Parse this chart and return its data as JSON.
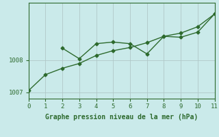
{
  "line1_x": [
    0,
    1,
    2,
    3,
    4,
    5,
    6,
    7,
    8,
    9,
    10,
    11
  ],
  "line1_y": [
    1007.05,
    1007.55,
    1007.75,
    1007.9,
    1008.15,
    1008.3,
    1008.4,
    1008.55,
    1008.75,
    1008.85,
    1009.05,
    1009.45
  ],
  "line2_x": [
    2,
    3,
    4,
    5,
    6,
    7,
    8,
    9,
    10,
    11
  ],
  "line2_y": [
    1008.38,
    1008.05,
    1008.52,
    1008.57,
    1008.52,
    1008.2,
    1008.75,
    1008.72,
    1008.88,
    1009.45
  ],
  "line_color": "#2d6a2d",
  "bg_color": "#caeaea",
  "grid_color": "#b0c8c8",
  "xlabel": "Graphe pression niveau de la mer (hPa)",
  "xlim": [
    0,
    11
  ],
  "ylim": [
    1006.8,
    1009.8
  ],
  "yticks": [
    1007,
    1008
  ],
  "xticks": [
    0,
    1,
    2,
    3,
    4,
    5,
    6,
    7,
    8,
    9,
    10,
    11
  ],
  "marker": "D",
  "markersize": 2.5,
  "linewidth": 1.0
}
